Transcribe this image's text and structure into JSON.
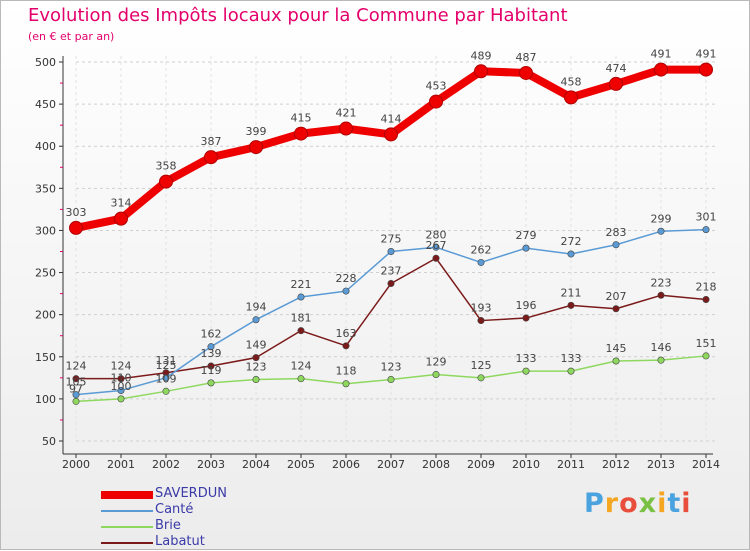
{
  "title": "Evolution des Impôts locaux pour la Commune par Habitant",
  "subtitle": "(en € et par an)",
  "brand": "Proxiti",
  "chart_data": {
    "type": "line",
    "title": "Evolution des Impôts locaux pour la Commune par Habitant",
    "subtitle": "(en € et par an)",
    "categories": [
      "2000",
      "2001",
      "2002",
      "2003",
      "2004",
      "2005",
      "2006",
      "2007",
      "2008",
      "2009",
      "2010",
      "2011",
      "2012",
      "2013",
      "2014"
    ],
    "ylim": [
      50,
      500
    ],
    "yticks": [
      50,
      100,
      150,
      200,
      250,
      300,
      350,
      400,
      450,
      500
    ],
    "legend_position": "bottom-left",
    "series": [
      {
        "name": "SAVERDUN",
        "color": "#ee0000",
        "values": [
          303,
          314,
          358,
          387,
          399,
          415,
          421,
          414,
          453,
          489,
          487,
          458,
          474,
          491,
          491
        ]
      },
      {
        "name": "Canté",
        "color": "#5b9bd5",
        "values": [
          105,
          110,
          125,
          162,
          194,
          221,
          228,
          275,
          280,
          262,
          279,
          272,
          283,
          299,
          301
        ]
      },
      {
        "name": "Brie",
        "color": "#8ed85f",
        "values": [
          97,
          100,
          109,
          119,
          123,
          124,
          118,
          123,
          129,
          125,
          133,
          133,
          145,
          146,
          151
        ]
      },
      {
        "name": "Labatut",
        "color": "#7b1a1a",
        "values": [
          124,
          124,
          131,
          139,
          149,
          181,
          163,
          237,
          267,
          193,
          196,
          211,
          207,
          223,
          218
        ]
      }
    ],
    "data_labels": {
      "SAVERDUN": [
        "303",
        "314",
        "358",
        "387",
        "399",
        "415",
        "421",
        "414",
        "453",
        "489",
        "487",
        "458",
        "474",
        "491",
        "491"
      ],
      "Canté": [
        "105",
        "110",
        "125",
        "162",
        "194",
        "221",
        "228",
        "275",
        "280",
        "262",
        "279",
        "272",
        "283",
        "299",
        "301"
      ],
      "Brie": [
        "97",
        "100",
        "109",
        "119",
        "123",
        "124",
        "118",
        "123",
        "129",
        "125",
        "133",
        "133",
        "145",
        "146",
        "151"
      ],
      "Labatut": [
        "124",
        "124",
        "131",
        "139",
        "149",
        "181",
        "163",
        "237",
        "267",
        "193",
        "196",
        "211",
        "207",
        "223",
        "218"
      ]
    }
  }
}
